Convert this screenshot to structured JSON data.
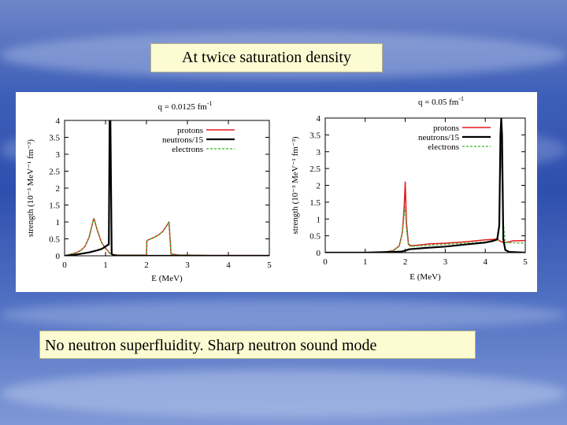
{
  "slide": {
    "title": "At  twice  saturation  density",
    "caption": "No  neutron superfluidity.  Sharp  neutron  sound  mode"
  },
  "colors": {
    "protons": "#e31a1c",
    "neutrons": "#000000",
    "electrons": "#3fb12f"
  },
  "chart_data": [
    {
      "type": "line",
      "title": "q = 0.0125 fm",
      "title_sup": "-1",
      "xlabel": "E (MeV)",
      "ylabel": "strength (10⁻³ MeV⁻¹ fm⁻³)",
      "xlim": [
        0,
        5
      ],
      "ylim": [
        0,
        4
      ],
      "xticks": [
        "0",
        "1",
        "2",
        "3",
        "4",
        "5"
      ],
      "yticks": [
        "0",
        "0.5",
        "1",
        "1.5",
        "2",
        "2.5",
        "3",
        "3.5",
        "4"
      ],
      "legend": [
        "protons",
        "neutrons/15",
        "electrons"
      ],
      "legend_position": "top-right",
      "series": [
        {
          "name": "protons",
          "x": [
            0,
            0.1,
            0.2,
            0.3,
            0.4,
            0.5,
            0.6,
            0.7,
            0.72,
            0.8,
            0.9,
            1.0,
            1.05,
            1.1,
            1.15,
            1.2,
            1.3,
            1.5,
            1.8,
            2.0,
            2.01,
            2.1,
            2.2,
            2.3,
            2.4,
            2.5,
            2.55,
            2.6,
            2.8,
            3.0,
            3.5,
            4.0,
            5.0
          ],
          "y": [
            0,
            0.03,
            0.06,
            0.1,
            0.16,
            0.28,
            0.55,
            1.05,
            1.1,
            0.75,
            0.4,
            0.22,
            0.16,
            0.08,
            0.05,
            0.03,
            0.02,
            0.02,
            0.02,
            0.02,
            0.45,
            0.5,
            0.55,
            0.62,
            0.72,
            0.9,
            1.0,
            0.05,
            0.02,
            0.02,
            0.01,
            0.01,
            0.01
          ]
        },
        {
          "name": "neutrons/15",
          "x": [
            0,
            0.2,
            0.4,
            0.6,
            0.8,
            0.9,
            1.0,
            1.05,
            1.08,
            1.1,
            1.12,
            1.15,
            1.2,
            1.3,
            1.6,
            2.0,
            3.0,
            4.0,
            5.0
          ],
          "y": [
            0,
            0.02,
            0.06,
            0.1,
            0.16,
            0.2,
            0.27,
            0.32,
            0.33,
            4.0,
            4.0,
            0.05,
            0.02,
            0.0,
            0.0,
            0.0,
            0.0,
            0.0,
            0.0
          ]
        },
        {
          "name": "electrons",
          "x": [
            0,
            0.1,
            0.2,
            0.3,
            0.4,
            0.5,
            0.6,
            0.7,
            0.72,
            0.8,
            0.9,
            1.0,
            1.05,
            1.1,
            1.15,
            1.2,
            1.3,
            1.5,
            1.8,
            2.0,
            2.01,
            2.1,
            2.2,
            2.3,
            2.4,
            2.5,
            2.55,
            2.6,
            2.8,
            3.0,
            3.5,
            4.0,
            5.0
          ],
          "y": [
            0,
            0.03,
            0.06,
            0.1,
            0.16,
            0.28,
            0.55,
            1.05,
            1.1,
            0.75,
            0.4,
            0.22,
            0.16,
            0.08,
            0.05,
            0.03,
            0.02,
            0.02,
            0.02,
            0.02,
            0.45,
            0.5,
            0.55,
            0.62,
            0.72,
            0.9,
            1.0,
            0.05,
            0.02,
            0.02,
            0.01,
            0.01,
            0.01
          ]
        }
      ]
    },
    {
      "type": "line",
      "title": "q = 0.05 fm",
      "title_sup": "-1",
      "xlabel": "E (MeV)",
      "ylabel": "strength (10⁻³ MeV⁻¹ fm⁻³)",
      "xlim": [
        0,
        5
      ],
      "ylim": [
        0,
        4
      ],
      "xticks": [
        "0",
        "1",
        "2",
        "3",
        "4",
        "5"
      ],
      "yticks": [
        "0",
        "0.5",
        "1",
        "1.5",
        "2",
        "2.5",
        "3",
        "3.5",
        "4"
      ],
      "legend": [
        "protons",
        "neutrons/15",
        "electrons"
      ],
      "legend_position": "top-right",
      "series": [
        {
          "name": "protons",
          "x": [
            0,
            1.0,
            1.5,
            1.7,
            1.85,
            1.93,
            1.97,
            2.0,
            2.03,
            2.08,
            2.15,
            2.3,
            2.6,
            3.0,
            3.5,
            4.0,
            4.3,
            4.4,
            4.5,
            4.7,
            5.0
          ],
          "y": [
            0,
            0.0,
            0.02,
            0.06,
            0.2,
            0.6,
            1.3,
            2.1,
            0.9,
            0.25,
            0.2,
            0.22,
            0.26,
            0.28,
            0.32,
            0.38,
            0.4,
            0.32,
            0.3,
            0.35,
            0.36
          ]
        },
        {
          "name": "neutrons/15",
          "x": [
            0,
            1.0,
            1.9,
            2.0,
            2.1,
            2.5,
            3.0,
            3.5,
            4.0,
            4.2,
            4.3,
            4.35,
            4.38,
            4.4,
            4.42,
            4.45,
            4.5,
            4.6,
            5.0
          ],
          "y": [
            0,
            0.0,
            0.03,
            0.06,
            0.1,
            0.14,
            0.18,
            0.24,
            0.3,
            0.35,
            0.4,
            0.8,
            3.5,
            4.0,
            3.5,
            0.4,
            0.08,
            0.02,
            0.0
          ]
        },
        {
          "name": "electrons",
          "x": [
            0,
            1.0,
            1.5,
            1.7,
            1.85,
            1.93,
            1.97,
            2.0,
            2.03,
            2.08,
            2.15,
            2.3,
            2.6,
            3.0,
            3.5,
            4.0,
            4.3,
            4.35,
            4.4,
            4.45,
            4.5,
            5.0
          ],
          "y": [
            0,
            0.0,
            0.02,
            0.06,
            0.2,
            0.6,
            1.1,
            1.35,
            0.7,
            0.22,
            0.18,
            0.2,
            0.22,
            0.25,
            0.28,
            0.32,
            0.36,
            0.9,
            3.1,
            0.9,
            0.3,
            0.28
          ]
        }
      ]
    }
  ]
}
